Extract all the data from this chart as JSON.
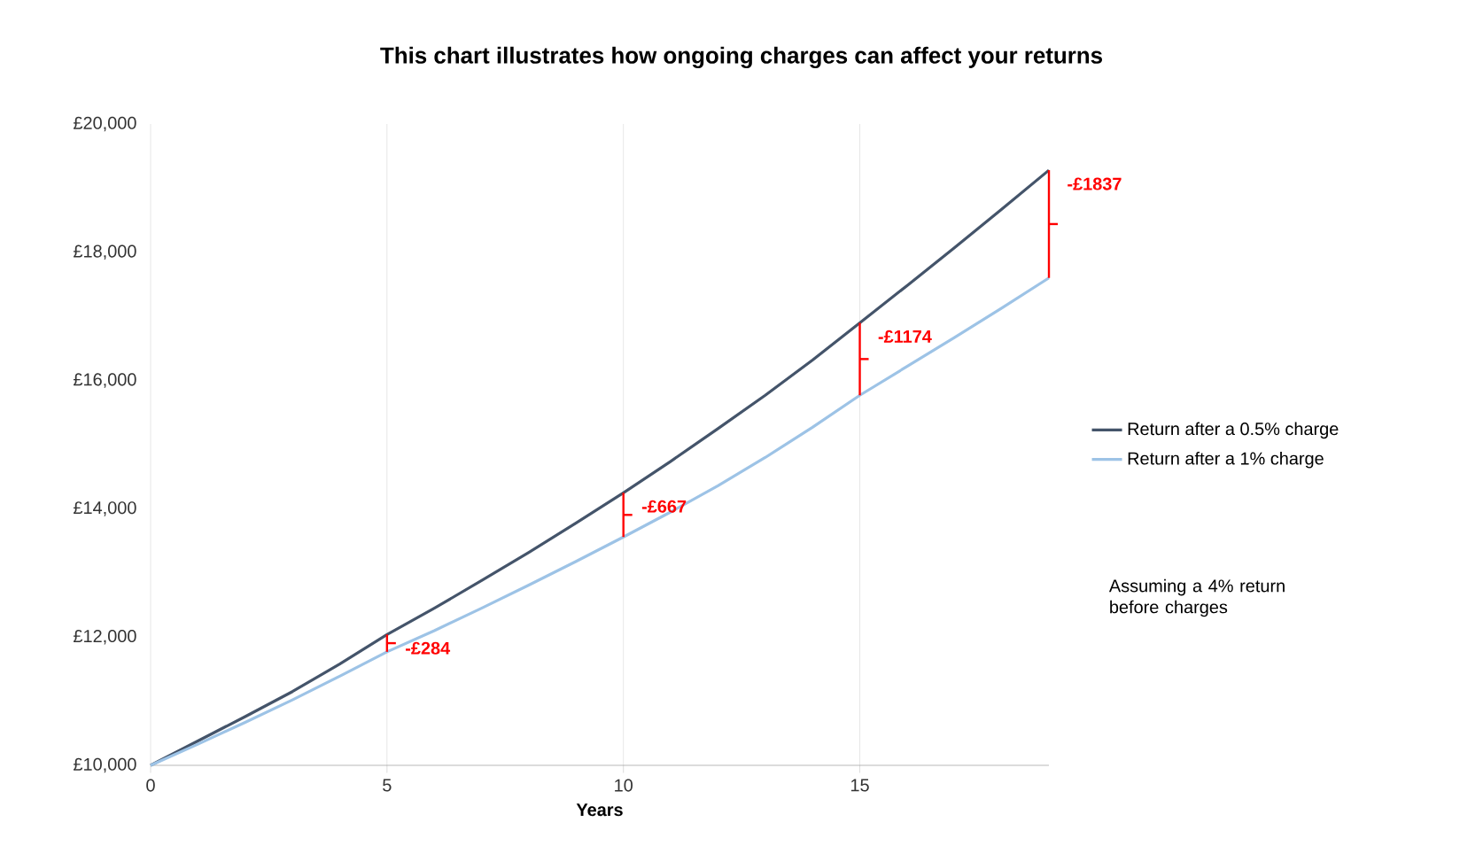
{
  "chart_data": {
    "type": "line",
    "title": "This chart illustrates how ongoing charges can affect your returns",
    "xlabel": "Years",
    "x": [
      0,
      1,
      2,
      3,
      4,
      5,
      6,
      7,
      8,
      9,
      10,
      11,
      12,
      13,
      14,
      15,
      16,
      17,
      18,
      19
    ],
    "series": [
      {
        "name": "Return after a 0.5% charge",
        "color": "#44546a",
        "values": [
          10000,
          10380,
          10760,
          11150,
          11580,
          12040,
          12450,
          12880,
          13320,
          13780,
          14250,
          14740,
          15250,
          15770,
          16320,
          16900,
          17480,
          18070,
          18670,
          19280
        ]
      },
      {
        "name": "Return after a 1% charge",
        "color": "#9dc3e6",
        "values": [
          10000,
          10330,
          10670,
          11020,
          11390,
          11770,
          12100,
          12450,
          12810,
          13180,
          13560,
          13950,
          14360,
          14800,
          15270,
          15770,
          16220,
          16670,
          17130,
          17600
        ]
      }
    ],
    "xlim": [
      0,
      19
    ],
    "xticks": [
      0,
      5,
      10,
      15
    ],
    "ylim": [
      10000,
      20000
    ],
    "yticks": [
      {
        "value": 10000,
        "label": "£10,000"
      },
      {
        "value": 12000,
        "label": "£12,000"
      },
      {
        "value": 14000,
        "label": "£14,000"
      },
      {
        "value": 16000,
        "label": "£16,000"
      },
      {
        "value": 18000,
        "label": "£18,000"
      },
      {
        "value": 20000,
        "label": "£20,000"
      }
    ],
    "grid": "x",
    "legend": "right",
    "marker": "none",
    "line_style": "solid",
    "annotations": [
      {
        "text": "-£284",
        "x": 5,
        "y": 12040
      },
      {
        "text": "-£667",
        "x": 10,
        "y": 14250
      },
      {
        "text": "-£1174",
        "x": 15,
        "y": 16900
      },
      {
        "text": "-£1837",
        "x": 19,
        "y": 19280
      },
      "Assuming a 4% return before charges"
    ]
  }
}
